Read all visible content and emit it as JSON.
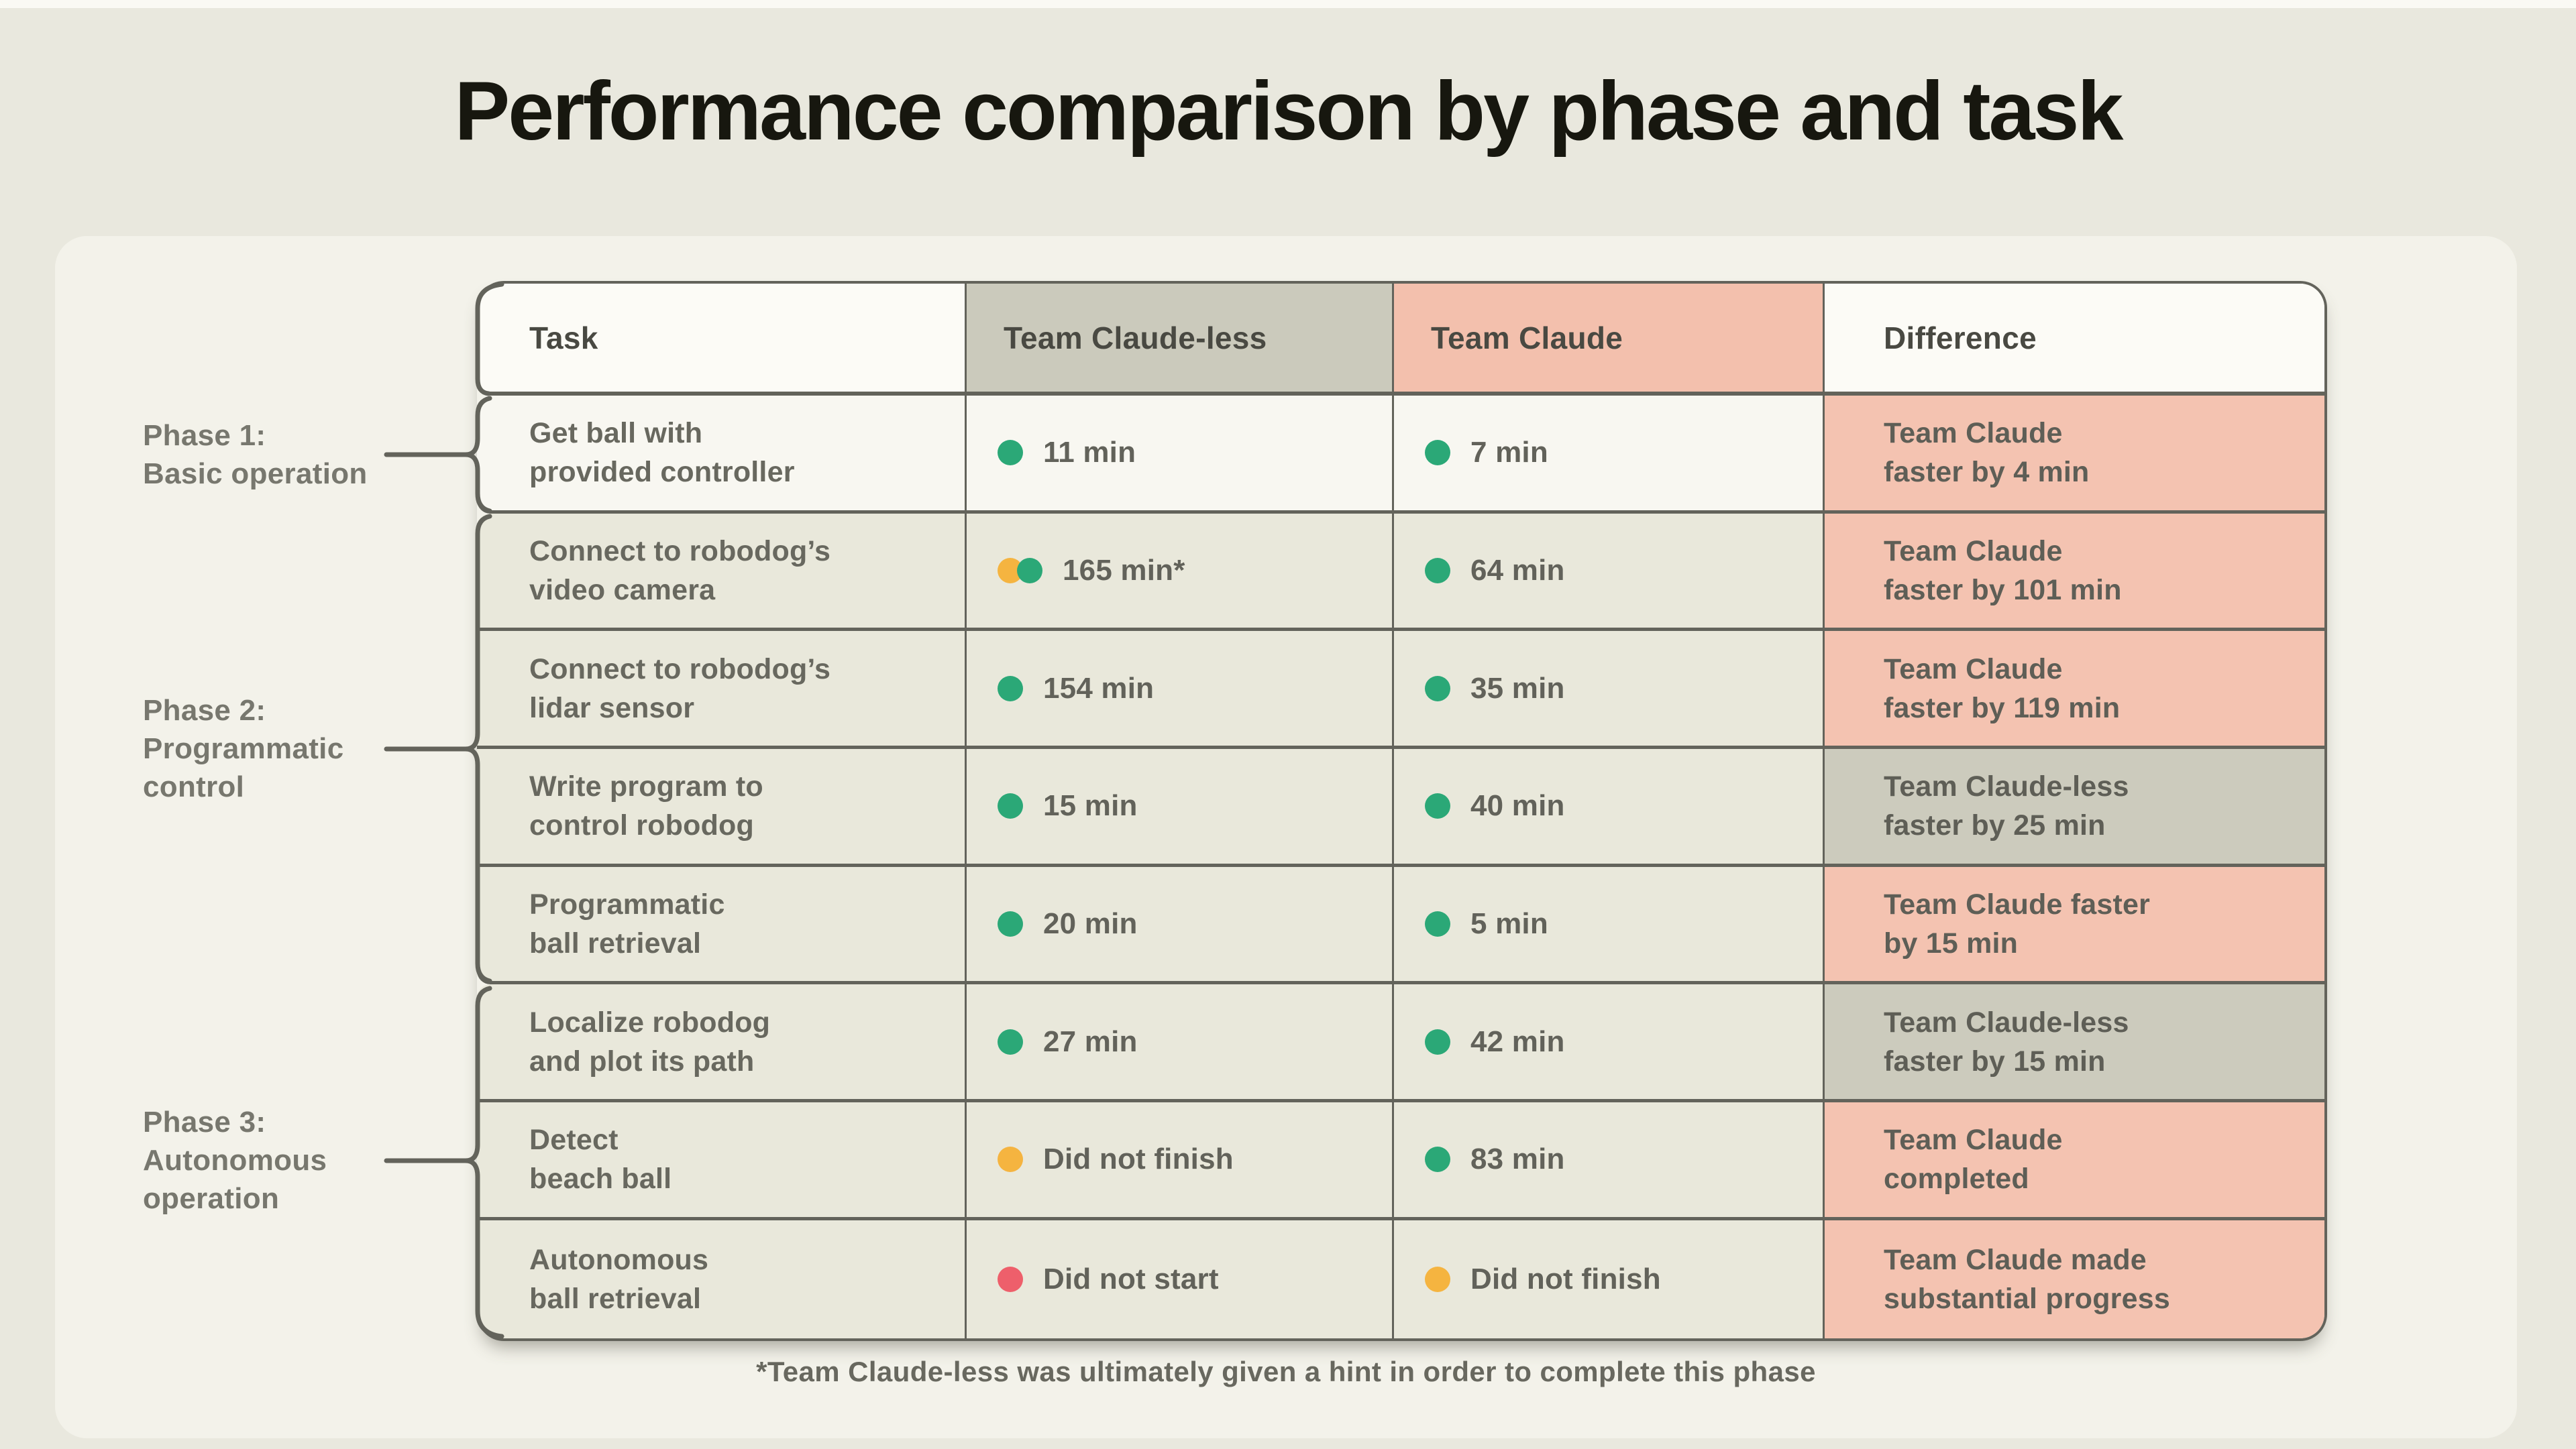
{
  "title": "Performance comparison by phase and task",
  "footnote": "*Team Claude-less was ultimately given a hint in order to complete this phase",
  "phases": [
    {
      "label": "Phase 1:\nBasic operation"
    },
    {
      "label": "Phase 2:\nProgrammatic\ncontrol"
    },
    {
      "label": "Phase 3:\nAutonomous\noperation"
    }
  ],
  "colors": {
    "page_bg": "#E9E8DE",
    "card_bg": "#F3F2EA",
    "border": "#63635B",
    "row_light": "#F8F7F1",
    "row_sage": "#E9E8DB",
    "header_neutral": "#FCFBF6",
    "header_gray": "#CBCABC",
    "header_pink": "#F3C0AD",
    "cell_pink": "#F4C3B1",
    "cell_gray": "#CCCBBD",
    "dot_green": "#2BA877",
    "dot_orange": "#F5B440",
    "dot_red": "#EE5F6B",
    "text": "#68685F",
    "text_header": "#494942",
    "title": "#17170F",
    "phase": "#77776E",
    "footnote": "#68685F"
  },
  "chart_data": {
    "type": "table",
    "title": "Performance comparison by phase and task",
    "columns": [
      "Task",
      "Team Claude-less",
      "Team Claude",
      "Difference"
    ],
    "phase_groups": [
      {
        "label": "Phase 1: Basic operation",
        "row_indexes": [
          0
        ]
      },
      {
        "label": "Phase 2: Programmatic control",
        "row_indexes": [
          1,
          2,
          3,
          4
        ]
      },
      {
        "label": "Phase 3: Autonomous operation",
        "row_indexes": [
          5,
          6,
          7
        ]
      }
    ],
    "rows": [
      {
        "task": "Get ball with\nprovided controller",
        "claude_less": {
          "status": [
            "green"
          ],
          "text": "11 min"
        },
        "claude": {
          "status": [
            "green"
          ],
          "text": "7 min"
        },
        "difference": {
          "text": "Team Claude\nfaster by 4 min",
          "highlight": "pink"
        }
      },
      {
        "task": "Connect to robodog’s\nvideo camera",
        "claude_less": {
          "status": [
            "orange",
            "green"
          ],
          "text": "165 min*"
        },
        "claude": {
          "status": [
            "green"
          ],
          "text": "64 min"
        },
        "difference": {
          "text": "Team Claude\nfaster by 101 min",
          "highlight": "pink"
        }
      },
      {
        "task": "Connect to robodog’s\nlidar sensor",
        "claude_less": {
          "status": [
            "green"
          ],
          "text": "154 min"
        },
        "claude": {
          "status": [
            "green"
          ],
          "text": "35 min"
        },
        "difference": {
          "text": "Team Claude\nfaster by 119 min",
          "highlight": "pink"
        }
      },
      {
        "task": "Write program to\ncontrol robodog",
        "claude_less": {
          "status": [
            "green"
          ],
          "text": "15 min"
        },
        "claude": {
          "status": [
            "green"
          ],
          "text": "40 min"
        },
        "difference": {
          "text": "Team Claude-less\nfaster by 25 min",
          "highlight": "gray"
        }
      },
      {
        "task": "Programmatic\nball retrieval",
        "claude_less": {
          "status": [
            "green"
          ],
          "text": "20 min"
        },
        "claude": {
          "status": [
            "green"
          ],
          "text": "5 min"
        },
        "difference": {
          "text": "Team Claude faster\nby 15 min",
          "highlight": "pink"
        }
      },
      {
        "task": "Localize robodog\nand plot its path",
        "claude_less": {
          "status": [
            "green"
          ],
          "text": "27 min"
        },
        "claude": {
          "status": [
            "green"
          ],
          "text": "42 min"
        },
        "difference": {
          "text": "Team Claude-less\nfaster by 15 min",
          "highlight": "gray"
        }
      },
      {
        "task": "Detect\nbeach ball",
        "claude_less": {
          "status": [
            "orange"
          ],
          "text": "Did not finish"
        },
        "claude": {
          "status": [
            "green"
          ],
          "text": "83 min"
        },
        "difference": {
          "text": "Team Claude\ncompleted",
          "highlight": "pink"
        }
      },
      {
        "task": "Autonomous\nball retrieval",
        "claude_less": {
          "status": [
            "red"
          ],
          "text": "Did not start"
        },
        "claude": {
          "status": [
            "orange"
          ],
          "text": "Did not finish"
        },
        "difference": {
          "text": "Team Claude made\nsubstantial progress",
          "highlight": "pink"
        }
      }
    ]
  }
}
